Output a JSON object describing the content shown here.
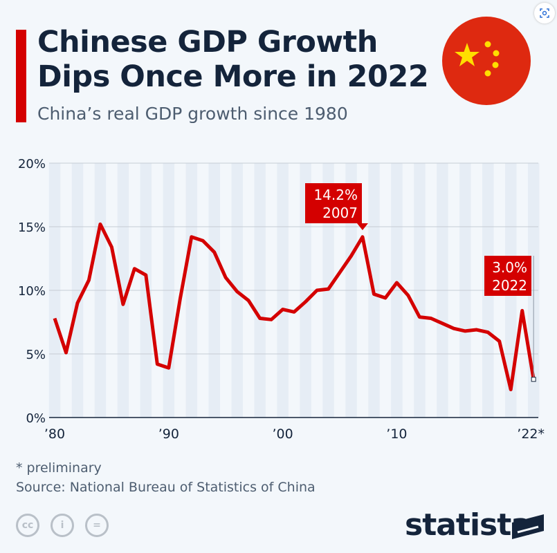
{
  "header": {
    "title_line1": "Chinese GDP Growth",
    "title_line2": "Dips Once More in 2022",
    "subtitle": "China’s real GDP growth since 1980"
  },
  "colors": {
    "accent": "#d40000",
    "title": "#14243b"
  },
  "chart_data": {
    "type": "line",
    "x": [
      1980,
      1981,
      1982,
      1983,
      1984,
      1985,
      1986,
      1987,
      1988,
      1989,
      1990,
      1991,
      1992,
      1993,
      1994,
      1995,
      1996,
      1997,
      1998,
      1999,
      2000,
      2001,
      2002,
      2003,
      2004,
      2005,
      2006,
      2007,
      2008,
      2009,
      2010,
      2011,
      2012,
      2013,
      2014,
      2015,
      2016,
      2017,
      2018,
      2019,
      2020,
      2021,
      2022
    ],
    "series": [
      {
        "values": [
          7.8,
          5.1,
          9.0,
          10.8,
          15.2,
          13.4,
          8.9,
          11.7,
          11.2,
          4.2,
          3.9,
          9.3,
          14.2,
          13.9,
          13.0,
          11.0,
          9.9,
          9.2,
          7.8,
          7.7,
          8.5,
          8.3,
          9.1,
          10.0,
          10.1,
          11.4,
          12.7,
          14.2,
          9.7,
          9.4,
          10.6,
          9.6,
          7.9,
          7.8,
          7.4,
          7.0,
          6.8,
          6.9,
          6.7,
          6.0,
          2.2,
          8.4,
          3.0
        ],
        "color": "#d40000"
      }
    ],
    "ylim": [
      0,
      20
    ],
    "yticks": [
      "0%",
      "5%",
      "10%",
      "15%",
      "20%"
    ],
    "xticks": [
      {
        "year": 1980,
        "label": "’80"
      },
      {
        "year": 1990,
        "label": "’90"
      },
      {
        "year": 2000,
        "label": "’00"
      },
      {
        "year": 2010,
        "label": "’10"
      },
      {
        "year": 2022,
        "label": "’22*"
      }
    ],
    "annotations": [
      {
        "year": 2007,
        "value": 14.2,
        "line1": "14.2%",
        "line2": "2007"
      },
      {
        "year": 2022,
        "value": 3.0,
        "line1": "3.0%",
        "line2": "2022"
      }
    ],
    "grid": true
  },
  "footer": {
    "note": "* preliminary",
    "source": "Source: National Bureau of Statistics of China",
    "logo": "statista"
  },
  "icons": [
    "scan-icon",
    "china-flag-icon",
    "cc-icon",
    "attribution-icon",
    "no-derivatives-icon",
    "statista-logo-icon"
  ]
}
